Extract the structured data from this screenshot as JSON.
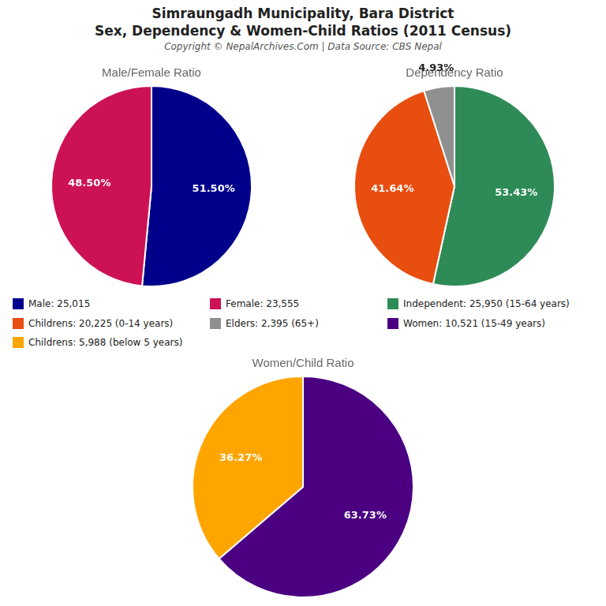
{
  "title": "Simraungadh Municipality, Bara District",
  "subtitle": "Sex, Dependency & Women-Child Ratios (2011 Census)",
  "annotations": [
    "Copyright © NepalArchives.Com | Data Source: CBS Nepal"
  ],
  "chart_data": [
    {
      "type": "pie",
      "title": "Male/Female Ratio",
      "categories": [
        "Male: 25,015",
        "Female: 23,555"
      ],
      "values": [
        51.5,
        48.5
      ],
      "colors": [
        "#00008B",
        "#CC1155"
      ],
      "data_labels": true,
      "value_labels": [
        "51.50%",
        "48.50%"
      ]
    },
    {
      "type": "pie",
      "title": "Dependency Ratio",
      "categories": [
        "Independent: 25,950 (15-64 years)",
        "Childrens: 20,225 (0-14 years)",
        "Elders: 2,395 (65+)"
      ],
      "values": [
        53.43,
        41.64,
        4.93
      ],
      "colors": [
        "#2E8B57",
        "#E84E10",
        "#909090"
      ],
      "data_labels": true,
      "value_labels": [
        "53.43%",
        "41.64%",
        "4.93%"
      ]
    },
    {
      "type": "pie",
      "title": "Women/Child Ratio",
      "categories": [
        "Women: 10,521 (15-49 years)",
        "Childrens: 5,988 (below 5 years)"
      ],
      "values": [
        63.73,
        36.27
      ],
      "colors": [
        "#4B0082",
        "#FFA500"
      ],
      "data_labels": true,
      "value_labels": [
        "63.73%",
        "36.27%"
      ]
    }
  ]
}
